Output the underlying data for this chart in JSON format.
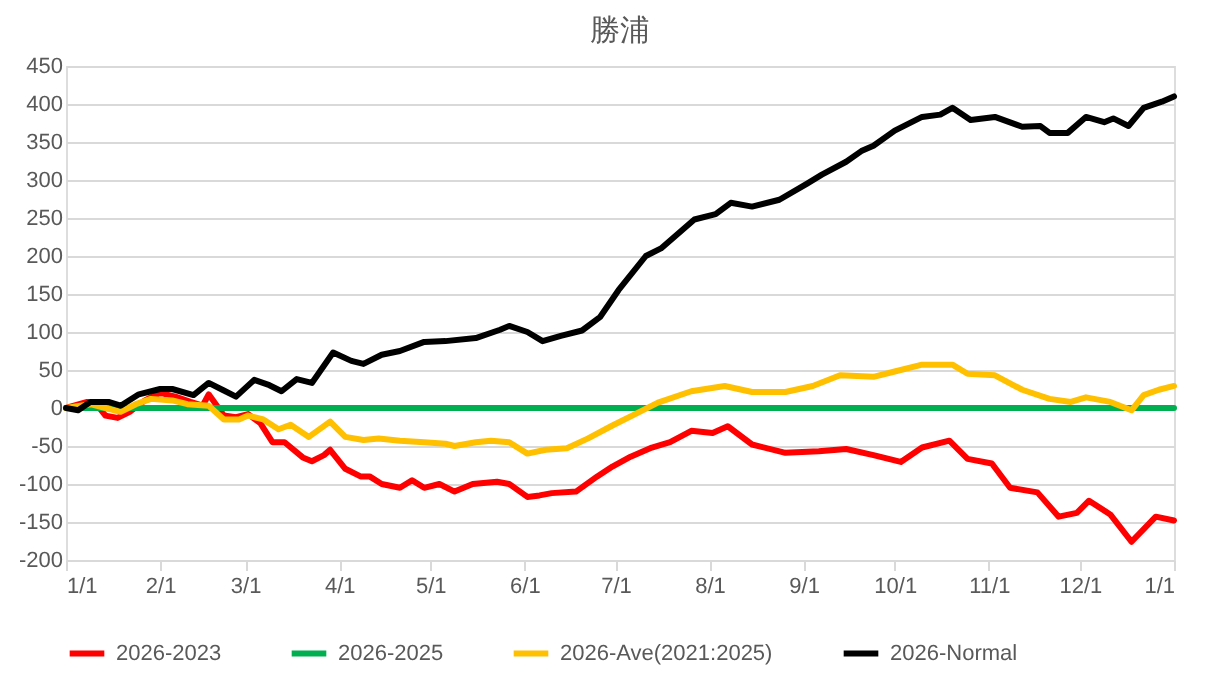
{
  "chart_data": {
    "type": "line",
    "title": "勝浦",
    "xlim": [
      "2026-01-01",
      "2027-01-01"
    ],
    "xticks": [
      {
        "value": "2026-01-01",
        "label": "1/1"
      },
      {
        "value": "2026-02-01",
        "label": "2/1"
      },
      {
        "value": "2026-03-01",
        "label": "3/1"
      },
      {
        "value": "2026-04-01",
        "label": "4/1"
      },
      {
        "value": "2026-05-01",
        "label": "5/1"
      },
      {
        "value": "2026-06-01",
        "label": "6/1"
      },
      {
        "value": "2026-07-01",
        "label": "7/1"
      },
      {
        "value": "2026-08-01",
        "label": "8/1"
      },
      {
        "value": "2026-09-01",
        "label": "9/1"
      },
      {
        "value": "2026-10-01",
        "label": "10/1"
      },
      {
        "value": "2026-11-01",
        "label": "11/1"
      },
      {
        "value": "2026-12-01",
        "label": "12/1"
      },
      {
        "value": "2027-01-01",
        "label": "1/1"
      }
    ],
    "ylim": [
      -200,
      450
    ],
    "yticks": [
      -200,
      -150,
      -100,
      -50,
      0,
      50,
      100,
      150,
      200,
      250,
      300,
      350,
      400,
      450
    ],
    "grid": "y",
    "legend": "bottom",
    "marker": "none",
    "line_style": "solid",
    "series": [
      {
        "name": "2026-2023",
        "color": "#ff0000",
        "x": [
          "2026-01-01",
          "2026-01-08",
          "2026-01-11",
          "2026-01-14",
          "2026-01-18",
          "2026-01-22",
          "2026-01-27",
          "2026-02-01",
          "2026-02-06",
          "2026-02-11",
          "2026-02-15",
          "2026-02-17",
          "2026-02-22",
          "2026-02-26",
          "2026-03-02",
          "2026-03-06",
          "2026-03-10",
          "2026-03-14",
          "2026-03-20",
          "2026-03-23",
          "2026-03-27",
          "2026-03-29",
          "2026-04-03",
          "2026-04-08",
          "2026-04-11",
          "2026-04-15",
          "2026-04-21",
          "2026-04-25",
          "2026-04-29",
          "2026-05-04",
          "2026-05-09",
          "2026-05-15",
          "2026-05-23",
          "2026-05-27",
          "2026-06-02",
          "2026-06-06",
          "2026-06-10",
          "2026-06-18",
          "2026-06-25",
          "2026-06-30",
          "2026-07-06",
          "2026-07-13",
          "2026-07-19",
          "2026-07-26",
          "2026-08-02",
          "2026-08-07",
          "2026-08-15",
          "2026-08-26",
          "2026-09-06",
          "2026-09-15",
          "2026-09-24",
          "2026-10-03",
          "2026-10-10",
          "2026-10-19",
          "2026-10-25",
          "2026-11-02",
          "2026-11-08",
          "2026-11-17",
          "2026-11-24",
          "2026-11-30",
          "2026-12-04",
          "2026-12-11",
          "2026-12-18",
          "2026-12-26",
          "2027-01-01"
        ],
        "values": [
          0,
          8,
          5,
          -10,
          -13,
          -5,
          10,
          20,
          15,
          8,
          3,
          18,
          -10,
          -12,
          -8,
          -20,
          -45,
          -45,
          -65,
          -70,
          -62,
          -55,
          -80,
          -90,
          -90,
          -100,
          -105,
          -95,
          -105,
          -100,
          -110,
          -100,
          -97,
          -100,
          -117,
          -115,
          -112,
          -110,
          -90,
          -77,
          -64,
          -52,
          -45,
          -30,
          -33,
          -24,
          -48,
          -59,
          -57,
          -54,
          -62,
          -71,
          -52,
          -43,
          -67,
          -73,
          -105,
          -111,
          -143,
          -138,
          -122,
          -140,
          -176,
          -143,
          -148
        ]
      },
      {
        "name": "2026-2025",
        "color": "#00b050",
        "x": [
          "2026-01-01",
          "2027-01-01"
        ],
        "values": [
          0,
          0
        ]
      },
      {
        "name": "2026-Ave(2021:2025)",
        "color": "#ffc000",
        "x": [
          "2026-01-01",
          "2026-01-09",
          "2026-01-14",
          "2026-01-19",
          "2026-01-24",
          "2026-01-29",
          "2026-02-05",
          "2026-02-10",
          "2026-02-17",
          "2026-02-22",
          "2026-02-27",
          "2026-03-02",
          "2026-03-07",
          "2026-03-12",
          "2026-03-16",
          "2026-03-22",
          "2026-03-29",
          "2026-04-03",
          "2026-04-09",
          "2026-04-14",
          "2026-04-21",
          "2026-04-29",
          "2026-05-06",
          "2026-05-09",
          "2026-05-16",
          "2026-05-21",
          "2026-05-27",
          "2026-06-02",
          "2026-06-08",
          "2026-06-15",
          "2026-06-22",
          "2026-06-30",
          "2026-07-08",
          "2026-07-15",
          "2026-07-26",
          "2026-08-06",
          "2026-08-15",
          "2026-08-26",
          "2026-09-04",
          "2026-09-13",
          "2026-09-24",
          "2026-10-01",
          "2026-10-10",
          "2026-10-20",
          "2026-10-25",
          "2026-11-03",
          "2026-11-12",
          "2026-11-21",
          "2026-11-28",
          "2026-12-03",
          "2026-12-11",
          "2026-12-18",
          "2026-12-22",
          "2026-12-27",
          "2027-01-01"
        ],
        "values": [
          0,
          5,
          0,
          -5,
          5,
          12,
          10,
          5,
          3,
          -15,
          -15,
          -10,
          -15,
          -28,
          -22,
          -38,
          -18,
          -38,
          -42,
          -40,
          -43,
          -45,
          -47,
          -50,
          -45,
          -43,
          -45,
          -60,
          -55,
          -53,
          -40,
          -23,
          -7,
          7,
          22,
          29,
          21,
          21,
          29,
          43,
          41,
          48,
          57,
          57,
          45,
          43,
          24,
          12,
          8,
          14,
          8,
          -3,
          17,
          24,
          29
        ]
      },
      {
        "name": "2026-Normal",
        "color": "#000000",
        "x": [
          "2026-01-01",
          "2026-01-05",
          "2026-01-09",
          "2026-01-15",
          "2026-01-19",
          "2026-01-25",
          "2026-02-01",
          "2026-02-05",
          "2026-02-12",
          "2026-02-17",
          "2026-02-22",
          "2026-02-26",
          "2026-03-04",
          "2026-03-09",
          "2026-03-13",
          "2026-03-18",
          "2026-03-23",
          "2026-03-30",
          "2026-04-05",
          "2026-04-09",
          "2026-04-15",
          "2026-04-21",
          "2026-04-29",
          "2026-05-06",
          "2026-05-16",
          "2026-05-24",
          "2026-05-27",
          "2026-06-02",
          "2026-06-07",
          "2026-06-13",
          "2026-06-20",
          "2026-06-26",
          "2026-07-02",
          "2026-07-11",
          "2026-07-16",
          "2026-07-27",
          "2026-08-03",
          "2026-08-08",
          "2026-08-15",
          "2026-08-24",
          "2026-09-02",
          "2026-09-07",
          "2026-09-15",
          "2026-09-20",
          "2026-09-24",
          "2026-10-01",
          "2026-10-10",
          "2026-10-16",
          "2026-10-20",
          "2026-10-26",
          "2026-11-03",
          "2026-11-12",
          "2026-11-18",
          "2026-11-21",
          "2026-11-27",
          "2026-12-03",
          "2026-12-09",
          "2026-12-12",
          "2026-12-17",
          "2026-12-22",
          "2026-12-28",
          "2027-01-01"
        ],
        "values": [
          0,
          -3,
          8,
          8,
          3,
          18,
          25,
          25,
          17,
          33,
          23,
          15,
          37,
          30,
          22,
          38,
          33,
          73,
          62,
          58,
          70,
          75,
          87,
          88,
          92,
          103,
          108,
          100,
          88,
          95,
          102,
          120,
          155,
          200,
          210,
          248,
          255,
          270,
          265,
          274,
          295,
          307,
          324,
          338,
          345,
          365,
          383,
          386,
          395,
          379,
          383,
          370,
          371,
          362,
          362,
          383,
          376,
          381,
          371,
          395,
          403,
          410
        ]
      }
    ]
  }
}
